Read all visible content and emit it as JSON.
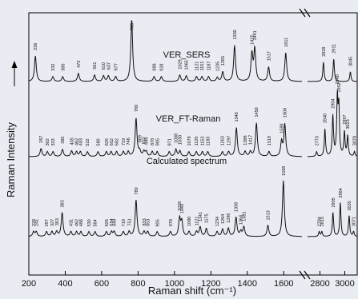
{
  "chart_data": {
    "type": "line",
    "xlabel": "Raman shift (cm⁻¹)",
    "ylabel": "Raman Intensity",
    "y_arrow": true,
    "xlim": [
      200,
      3100
    ],
    "axis_break": {
      "from": 1700,
      "to": 2700
    },
    "x_ticks": [
      200,
      400,
      600,
      800,
      1000,
      1200,
      1400,
      1600,
      2800,
      3000
    ],
    "series": [
      {
        "name": "VER_SERS",
        "peaks": [
          {
            "x": 236,
            "label": "236"
          },
          {
            "x": 332,
            "label": "332"
          },
          {
            "x": 386,
            "label": "386"
          },
          {
            "x": 472,
            "label": "472"
          },
          {
            "x": 561,
            "label": "561"
          },
          {
            "x": 610,
            "label": "610"
          },
          {
            "x": 637,
            "label": "637"
          },
          {
            "x": 677,
            "label": "677"
          },
          {
            "x": 765,
            "label": "765"
          },
          {
            "x": 888,
            "label": "888"
          },
          {
            "x": 928,
            "label": "928"
          },
          {
            "x": 1029,
            "label": "1029"
          },
          {
            "x": 1065,
            "label": "1065"
          },
          {
            "x": 1121,
            "label": "1121"
          },
          {
            "x": 1151,
            "label": "1151"
          },
          {
            "x": 1187,
            "label": "1187"
          },
          {
            "x": 1235,
            "label": "1235"
          },
          {
            "x": 1265,
            "label": "1265"
          },
          {
            "x": 1330,
            "label": "1330"
          },
          {
            "x": 1425,
            "label": "1425"
          },
          {
            "x": 1441,
            "label": "1441"
          },
          {
            "x": 1517,
            "label": "1517"
          },
          {
            "x": 1611,
            "label": "1611"
          },
          {
            "x": 2828,
            "label": "2828"
          },
          {
            "x": 2911,
            "label": "2911"
          },
          {
            "x": 3045,
            "label": "3045"
          }
        ]
      },
      {
        "name": "VER_FT-Raman",
        "peaks": [
          {
            "x": 267,
            "label": "267"
          },
          {
            "x": 302,
            "label": "302"
          },
          {
            "x": 333,
            "label": "333"
          },
          {
            "x": 385,
            "label": "385"
          },
          {
            "x": 435,
            "label": "435"
          },
          {
            "x": 462,
            "label": "462"
          },
          {
            "x": 483,
            "label": "483"
          },
          {
            "x": 522,
            "label": "522"
          },
          {
            "x": 580,
            "label": "580"
          },
          {
            "x": 626,
            "label": "626"
          },
          {
            "x": 652,
            "label": "652"
          },
          {
            "x": 682,
            "label": "682"
          },
          {
            "x": 719,
            "label": "719"
          },
          {
            "x": 746,
            "label": "746"
          },
          {
            "x": 789,
            "label": "789"
          },
          {
            "x": 809,
            "label": "809"
          },
          {
            "x": 832,
            "label": "832"
          },
          {
            "x": 845,
            "label": "845"
          },
          {
            "x": 878,
            "label": "878"
          },
          {
            "x": 905,
            "label": "905"
          },
          {
            "x": 971,
            "label": "971"
          },
          {
            "x": 1008,
            "label": "1008"
          },
          {
            "x": 1030,
            "label": "1030"
          },
          {
            "x": 1079,
            "label": "1079"
          },
          {
            "x": 1120,
            "label": "1120"
          },
          {
            "x": 1153,
            "label": "1153"
          },
          {
            "x": 1183,
            "label": "1183"
          },
          {
            "x": 1263,
            "label": "1263"
          },
          {
            "x": 1297,
            "label": "1297"
          },
          {
            "x": 1340,
            "label": "1340"
          },
          {
            "x": 1388,
            "label": "1388"
          },
          {
            "x": 1417,
            "label": "1417"
          },
          {
            "x": 1450,
            "label": "1450"
          },
          {
            "x": 1519,
            "label": "1519"
          },
          {
            "x": 1588,
            "label": "1588"
          },
          {
            "x": 1606,
            "label": "1606"
          },
          {
            "x": 2773,
            "label": "2773"
          },
          {
            "x": 2840,
            "label": "2840"
          },
          {
            "x": 2904,
            "label": "2904"
          },
          {
            "x": 2940,
            "label": "2940"
          },
          {
            "x": 2952,
            "label": "2952"
          },
          {
            "x": 2997,
            "label": "2997"
          },
          {
            "x": 3023,
            "label": "3023"
          },
          {
            "x": 3078,
            "label": "3078"
          }
        ]
      },
      {
        "name": "Calculated spectrum",
        "peaks": [
          {
            "x": 226,
            "label": "226"
          },
          {
            "x": 241,
            "label": "241"
          },
          {
            "x": 297,
            "label": "297"
          },
          {
            "x": 327,
            "label": "327"
          },
          {
            "x": 353,
            "label": "353"
          },
          {
            "x": 383,
            "label": "383"
          },
          {
            "x": 431,
            "label": "431"
          },
          {
            "x": 462,
            "label": "462"
          },
          {
            "x": 486,
            "label": "486"
          },
          {
            "x": 530,
            "label": "530"
          },
          {
            "x": 564,
            "label": "564"
          },
          {
            "x": 626,
            "label": "626"
          },
          {
            "x": 654,
            "label": "654"
          },
          {
            "x": 669,
            "label": "669"
          },
          {
            "x": 719,
            "label": "719"
          },
          {
            "x": 751,
            "label": "751"
          },
          {
            "x": 789,
            "label": "789"
          },
          {
            "x": 833,
            "label": "833"
          },
          {
            "x": 853,
            "label": "853"
          },
          {
            "x": 905,
            "label": "905"
          },
          {
            "x": 978,
            "label": "978"
          },
          {
            "x": 1028,
            "label": "1028"
          },
          {
            "x": 1040,
            "label": "1040"
          },
          {
            "x": 1080,
            "label": "1080"
          },
          {
            "x": 1121,
            "label": "1121"
          },
          {
            "x": 1141,
            "label": "1141"
          },
          {
            "x": 1175,
            "label": "1175"
          },
          {
            "x": 1234,
            "label": "1234"
          },
          {
            "x": 1264,
            "label": "1264"
          },
          {
            "x": 1296,
            "label": "1296"
          },
          {
            "x": 1338,
            "label": "1338"
          },
          {
            "x": 1364,
            "label": "1364"
          },
          {
            "x": 1381,
            "label": "1381"
          },
          {
            "x": 1513,
            "label": "1513"
          },
          {
            "x": 1598,
            "label": "1598"
          },
          {
            "x": 2794,
            "label": "2794"
          },
          {
            "x": 2815,
            "label": "2815"
          },
          {
            "x": 2905,
            "label": "2905"
          },
          {
            "x": 2964,
            "label": "2964"
          },
          {
            "x": 3035,
            "label": "3035"
          },
          {
            "x": 3071,
            "label": "3071"
          }
        ]
      }
    ]
  }
}
